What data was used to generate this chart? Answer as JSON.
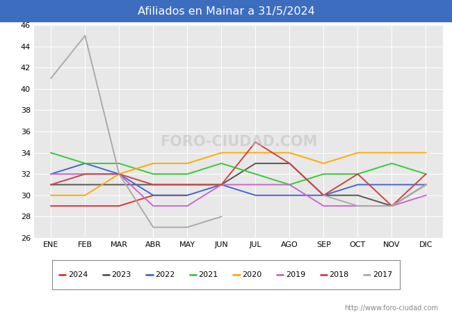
{
  "title": "Afiliados en Mainar a 31/5/2024",
  "title_bg_color": "#3d6dbf",
  "title_text_color": "white",
  "plot_bg_color": "#e8e8e8",
  "fig_bg_color": "#ffffff",
  "ylim": [
    26,
    46
  ],
  "yticks": [
    26,
    28,
    30,
    32,
    34,
    36,
    38,
    40,
    42,
    44,
    46
  ],
  "months": [
    "ENE",
    "FEB",
    "MAR",
    "ABR",
    "MAY",
    "JUN",
    "JUL",
    "AGO",
    "SEP",
    "OCT",
    "NOV",
    "DIC"
  ],
  "watermark_text": "http://www.foro-ciudad.com",
  "series": {
    "2024": {
      "color": "#e83030",
      "values": [
        29,
        29,
        29,
        30,
        30,
        null,
        null,
        null,
        null,
        null,
        null,
        null
      ]
    },
    "2023": {
      "color": "#555555",
      "values": [
        31,
        31,
        31,
        31,
        31,
        31,
        33,
        33,
        30,
        30,
        29,
        31
      ]
    },
    "2022": {
      "color": "#4466cc",
      "values": [
        32,
        33,
        32,
        30,
        30,
        31,
        30,
        30,
        30,
        31,
        31,
        31
      ]
    },
    "2021": {
      "color": "#33cc33",
      "values": [
        34,
        33,
        33,
        32,
        32,
        33,
        32,
        31,
        32,
        32,
        33,
        32
      ]
    },
    "2020": {
      "color": "#ffaa00",
      "values": [
        30,
        30,
        32,
        33,
        33,
        34,
        34,
        34,
        33,
        34,
        34,
        34
      ]
    },
    "2019": {
      "color": "#cc66cc",
      "values": [
        32,
        32,
        32,
        29,
        29,
        31,
        31,
        31,
        29,
        29,
        29,
        30
      ]
    },
    "2018": {
      "color": "#cc4444",
      "values": [
        31,
        32,
        32,
        31,
        31,
        31,
        35,
        33,
        30,
        32,
        29,
        32
      ]
    },
    "2017": {
      "color": "#aaaaaa",
      "values": [
        41,
        45,
        32,
        27,
        27,
        28,
        null,
        null,
        30,
        29,
        29,
        31
      ]
    }
  }
}
